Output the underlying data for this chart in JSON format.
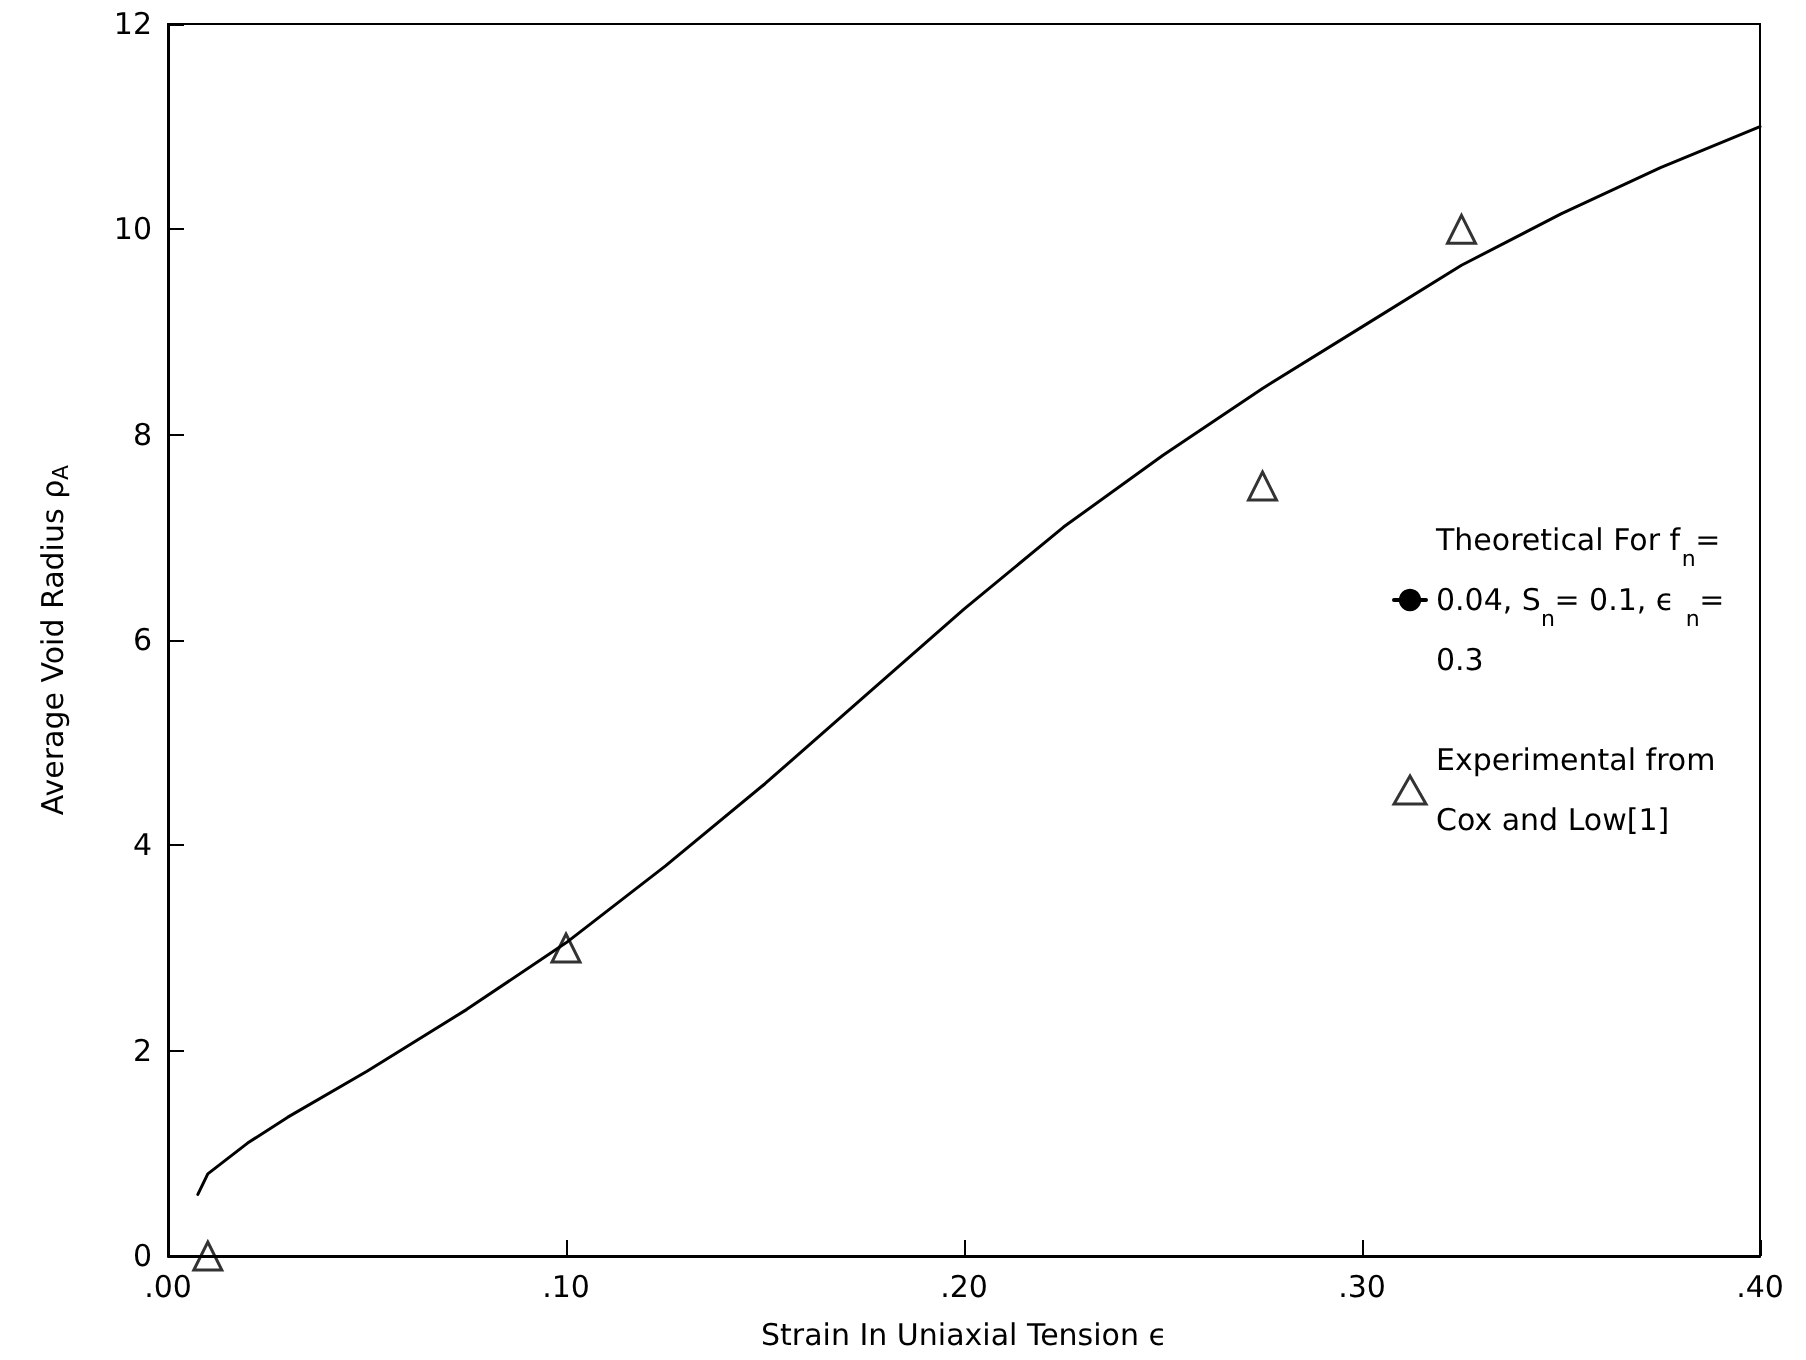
{
  "chart_data": {
    "type": "line",
    "xlabel": "Strain In Uniaxial Tension ϵ",
    "ylabel": "Average Void Radius ρ$_{A}$",
    "xlim": [
      0,
      0.4
    ],
    "ylim": [
      0,
      12
    ],
    "xticks": [
      {
        "value": 0,
        "label": ".00"
      },
      {
        "value": 0.1,
        "label": ".10"
      },
      {
        "value": 0.2,
        "label": ".20"
      },
      {
        "value": 0.3,
        "label": ".30"
      },
      {
        "value": 0.4,
        "label": ".40"
      }
    ],
    "yticks": [
      0,
      2,
      4,
      6,
      8,
      10,
      12
    ],
    "grid": false,
    "legend": "right",
    "series": [
      {
        "name": "Theoretical For f$_{n}$= 0.04, S$_{n}$= 0.1, ϵ$_{n}$= 0.3",
        "color": "#000000",
        "marker": "none",
        "line_style": "solid",
        "x": [
          0.0075,
          0.01,
          0.02,
          0.03,
          0.05,
          0.075,
          0.1,
          0.125,
          0.15,
          0.175,
          0.2,
          0.225,
          0.25,
          0.275,
          0.3,
          0.325,
          0.35,
          0.375,
          0.4
        ],
        "values": [
          0.6,
          0.8,
          1.1,
          1.35,
          1.8,
          2.4,
          3.05,
          3.8,
          4.6,
          5.45,
          6.3,
          7.1,
          7.8,
          8.45,
          9.05,
          9.65,
          10.15,
          10.6,
          11.0
        ]
      },
      {
        "name": "Experimental from Cox and Low[1]",
        "type": "scatter",
        "color": "#000000",
        "marker": "triangle",
        "x": [
          0.01,
          0.1,
          0.275,
          0.325
        ],
        "values": [
          0,
          3.0,
          7.5,
          10.0
        ]
      }
    ]
  }
}
